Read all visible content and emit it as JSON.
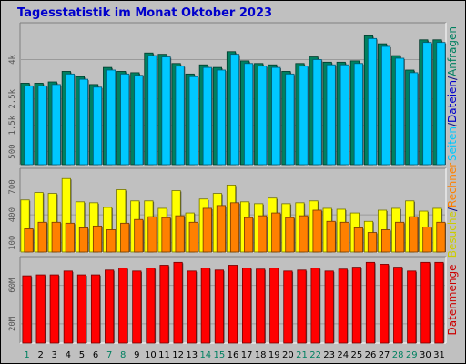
{
  "page": {
    "title": "Tagesstatistik im Monat Oktober 2023"
  },
  "chart_data": [
    {
      "type": "bar",
      "panel": "requests",
      "categories": [
        "1",
        "2",
        "3",
        "4",
        "5",
        "6",
        "7",
        "8",
        "9",
        "10",
        "11",
        "12",
        "13",
        "14",
        "15",
        "16",
        "17",
        "18",
        "19",
        "20",
        "21",
        "22",
        "23",
        "24",
        "25",
        "26",
        "27",
        "28",
        "29",
        "30",
        "31"
      ],
      "ylim": [
        0,
        5400
      ],
      "yticks": [
        {
          "value": 500,
          "label": "500"
        },
        {
          "value": 1500,
          "label": "1.5k"
        },
        {
          "value": 2500,
          "label": "2.5k"
        },
        {
          "value": 4000,
          "label": "4k"
        }
      ],
      "label_segments": [
        {
          "text": "Anfragen",
          "color": "#008060"
        },
        {
          "text": "/",
          "color": "#000080"
        },
        {
          "text": "Dateien",
          "color": "#0000cc"
        },
        {
          "text": "/",
          "color": "#000080"
        },
        {
          "text": "Seiten",
          "color": "#00c8ff"
        }
      ],
      "series": [
        {
          "name": "Anfragen",
          "color": "#008060",
          "values": [
            3100,
            3100,
            3150,
            3550,
            3350,
            3050,
            3700,
            3550,
            3500,
            4250,
            4200,
            3850,
            3450,
            3800,
            3700,
            4300,
            3950,
            3850,
            3800,
            3550,
            3850,
            4100,
            3900,
            3900,
            3950,
            4900,
            4600,
            4150,
            3600,
            4750,
            4750
          ]
        },
        {
          "name": "Dateien",
          "color": "#00c8ff",
          "values": [
            3000,
            3000,
            3050,
            3450,
            3250,
            2950,
            3600,
            3450,
            3400,
            4150,
            4100,
            3750,
            3350,
            3700,
            3600,
            4200,
            3850,
            3750,
            3700,
            3450,
            3750,
            4000,
            3800,
            3800,
            3850,
            4800,
            4500,
            4050,
            3500,
            4650,
            4650
          ]
        }
      ]
    },
    {
      "type": "bar",
      "panel": "visits",
      "categories": [
        "1",
        "2",
        "3",
        "4",
        "5",
        "6",
        "7",
        "8",
        "9",
        "10",
        "11",
        "12",
        "13",
        "14",
        "15",
        "16",
        "17",
        "18",
        "19",
        "20",
        "21",
        "22",
        "23",
        "24",
        "25",
        "26",
        "27",
        "28",
        "29",
        "30",
        "31"
      ],
      "ylim": [
        0,
        900
      ],
      "yticks": [
        {
          "value": 100,
          "label": "100"
        },
        {
          "value": 400,
          "label": "400"
        },
        {
          "value": 700,
          "label": "700"
        }
      ],
      "label_segments": [
        {
          "text": "Rechner",
          "color": "#ff8000"
        },
        {
          "text": "/",
          "color": "#000080"
        },
        {
          "text": "Besuche",
          "color": "#cccc00"
        }
      ],
      "series": [
        {
          "name": "Besuche",
          "color": "#ffff00",
          "values": [
            560,
            640,
            630,
            790,
            540,
            530,
            480,
            670,
            550,
            550,
            470,
            660,
            420,
            570,
            630,
            720,
            540,
            520,
            580,
            520,
            530,
            550,
            470,
            460,
            420,
            330,
            450,
            470,
            550,
            440,
            470
          ]
        },
        {
          "name": "Rechner",
          "color": "#ff8000",
          "values": [
            250,
            320,
            320,
            310,
            260,
            280,
            240,
            310,
            350,
            380,
            370,
            390,
            320,
            470,
            500,
            530,
            370,
            390,
            420,
            370,
            390,
            450,
            330,
            320,
            260,
            210,
            240,
            320,
            380,
            270,
            320
          ]
        }
      ]
    },
    {
      "type": "bar",
      "panel": "volume",
      "categories": [
        "1",
        "2",
        "3",
        "4",
        "5",
        "6",
        "7",
        "8",
        "9",
        "10",
        "11",
        "12",
        "13",
        "14",
        "15",
        "16",
        "17",
        "18",
        "19",
        "20",
        "21",
        "22",
        "23",
        "24",
        "25",
        "26",
        "27",
        "28",
        "29",
        "30",
        "31"
      ],
      "ylim": [
        0,
        90
      ],
      "yticks": [
        {
          "value": 20,
          "label": "20M"
        },
        {
          "value": 60,
          "label": "60M"
        }
      ],
      "label_segments": [
        {
          "text": "Datenmenge",
          "color": "#cc0000"
        }
      ],
      "series": [
        {
          "name": "Datenmenge",
          "color": "#ff0000",
          "values": [
            70,
            71,
            71,
            75,
            71,
            71,
            76,
            78,
            75,
            78,
            81,
            84,
            75,
            78,
            76,
            81,
            78,
            77,
            78,
            75,
            76,
            78,
            75,
            77,
            79,
            84,
            82,
            79,
            75,
            84,
            84
          ]
        }
      ]
    }
  ],
  "day_label_colors": {
    "weekday": "#000000",
    "weekend": "#008060"
  },
  "weekend_days": [
    "1",
    "7",
    "8",
    "14",
    "15",
    "21",
    "22",
    "28",
    "29"
  ]
}
